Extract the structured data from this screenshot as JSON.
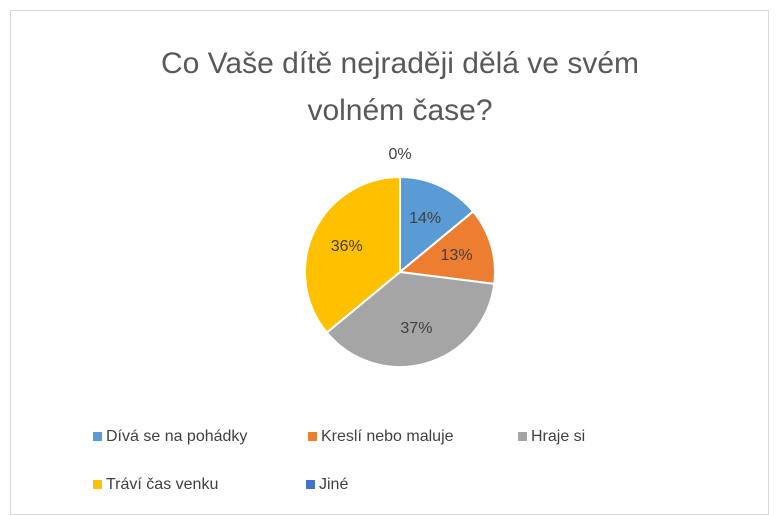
{
  "chart_data": {
    "type": "pie",
    "title": "Co Vaše dítě nejraději dělá ve svém volném čase?",
    "categories": [
      "Dívá se na pohádky",
      "Kreslí nebo maluje",
      "Hraje si",
      "Tráví čas venku",
      "Jiné"
    ],
    "values": [
      14,
      13,
      37,
      36,
      0
    ],
    "value_labels": [
      "14%",
      "13%",
      "37%",
      "36%",
      "0%"
    ],
    "colors": [
      "#5b9bd5",
      "#ed7d31",
      "#a5a5a5",
      "#ffc000",
      "#4472c4"
    ],
    "legend": "bottom"
  }
}
